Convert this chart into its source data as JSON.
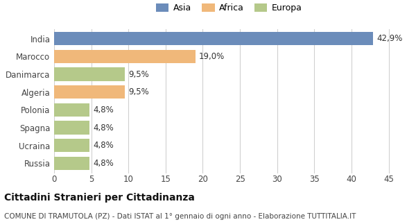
{
  "categories": [
    "India",
    "Marocco",
    "Danimarca",
    "Algeria",
    "Polonia",
    "Spagna",
    "Ucraina",
    "Russia"
  ],
  "values": [
    42.9,
    19.0,
    9.5,
    9.5,
    4.8,
    4.8,
    4.8,
    4.8
  ],
  "labels": [
    "42,9%",
    "19,0%",
    "9,5%",
    "9,5%",
    "4,8%",
    "4,8%",
    "4,8%",
    "4,8%"
  ],
  "colors": [
    "#6b8cba",
    "#f0b87a",
    "#b5c98a",
    "#f0b87a",
    "#b5c98a",
    "#b5c98a",
    "#b5c98a",
    "#b5c98a"
  ],
  "legend": [
    {
      "label": "Asia",
      "color": "#6b8cba"
    },
    {
      "label": "Africa",
      "color": "#f0b87a"
    },
    {
      "label": "Europa",
      "color": "#b5c98a"
    }
  ],
  "xlim": [
    0,
    47
  ],
  "xticks": [
    0,
    5,
    10,
    15,
    20,
    25,
    30,
    35,
    40,
    45
  ],
  "title_main": "Cittadini Stranieri per Cittadinanza",
  "title_sub": "COMUNE DI TRAMUTOLA (PZ) - Dati ISTAT al 1° gennaio di ogni anno - Elaborazione TUTTITALIA.IT",
  "bg_color": "#ffffff",
  "grid_color": "#d0d0d0",
  "bar_height": 0.75,
  "label_fontsize": 8.5,
  "tick_fontsize": 8.5,
  "title_main_fontsize": 10,
  "title_sub_fontsize": 7.5
}
